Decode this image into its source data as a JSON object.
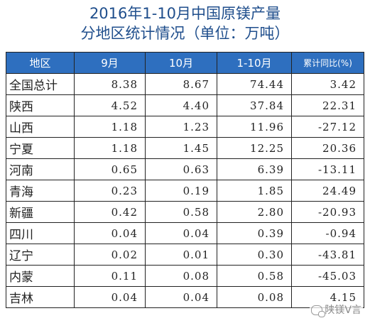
{
  "title": {
    "line1": "2016年1-10月中国原镁产量",
    "line2": "分地区统计情况（单位：万吨）"
  },
  "table": {
    "headers": [
      "地区",
      "9月",
      "10月",
      "1-10月",
      "累计同比(%)"
    ],
    "rows": [
      [
        "全国总计",
        "8.38",
        "8.67",
        "74.44",
        "3.42"
      ],
      [
        "陕西",
        "4.52",
        "4.40",
        "37.84",
        "22.31"
      ],
      [
        "山西",
        "1.18",
        "1.23",
        "11.96",
        "-27.12"
      ],
      [
        "宁夏",
        "1.18",
        "1.45",
        "12.25",
        "20.36"
      ],
      [
        "河南",
        "0.65",
        "0.63",
        "6.39",
        "-13.11"
      ],
      [
        "青海",
        "0.23",
        "0.19",
        "1.85",
        "24.49"
      ],
      [
        "新疆",
        "0.42",
        "0.58",
        "2.80",
        "-20.93"
      ],
      [
        "四川",
        "0.04",
        "0.04",
        "0.39",
        "-0.94"
      ],
      [
        "辽宁",
        "0.02",
        "0.01",
        "0.30",
        "-43.81"
      ],
      [
        "内蒙",
        "0.11",
        "0.08",
        "0.58",
        "-45.03"
      ],
      [
        "吉林",
        "0.04",
        "0.04",
        "0.08",
        "4.15"
      ]
    ]
  },
  "chart_data": {
    "type": "table",
    "title": "2016年1-10月中国原镁产量",
    "subtitle": "分地区统计情况（单位：万吨）",
    "columns": [
      "地区",
      "9月",
      "10月",
      "1-10月",
      "累计同比(%)"
    ],
    "categories": [
      "全国总计",
      "陕西",
      "山西",
      "宁夏",
      "河南",
      "青海",
      "新疆",
      "四川",
      "辽宁",
      "内蒙",
      "吉林"
    ],
    "series": [
      {
        "name": "9月",
        "values": [
          8.38,
          4.52,
          1.18,
          1.18,
          0.65,
          0.23,
          0.42,
          0.04,
          0.02,
          0.11,
          0.04
        ]
      },
      {
        "name": "10月",
        "values": [
          8.67,
          4.4,
          1.23,
          1.45,
          0.63,
          0.19,
          0.58,
          0.04,
          0.01,
          0.08,
          0.04
        ]
      },
      {
        "name": "1-10月",
        "values": [
          74.44,
          37.84,
          11.96,
          12.25,
          6.39,
          1.85,
          2.8,
          0.39,
          0.3,
          0.58,
          0.08
        ]
      },
      {
        "name": "累计同比(%)",
        "values": [
          3.42,
          22.31,
          -27.12,
          20.36,
          -13.11,
          24.49,
          -20.93,
          -0.94,
          -43.81,
          -45.03,
          4.15
        ]
      }
    ]
  },
  "watermark": {
    "icon": "wechat-icon",
    "text": "陕镁V言"
  },
  "colors": {
    "title": "#1f4e8c",
    "header_bg": "#2e6fbf",
    "header_text": "#ffffff",
    "border": "#222222"
  }
}
